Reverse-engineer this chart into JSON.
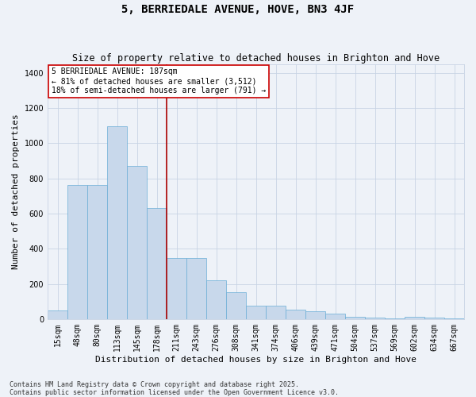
{
  "title": "5, BERRIEDALE AVENUE, HOVE, BN3 4JF",
  "subtitle": "Size of property relative to detached houses in Brighton and Hove",
  "xlabel": "Distribution of detached houses by size in Brighton and Hove",
  "ylabel": "Number of detached properties",
  "categories": [
    "15sqm",
    "48sqm",
    "80sqm",
    "113sqm",
    "145sqm",
    "178sqm",
    "211sqm",
    "243sqm",
    "276sqm",
    "308sqm",
    "341sqm",
    "374sqm",
    "406sqm",
    "439sqm",
    "471sqm",
    "504sqm",
    "537sqm",
    "569sqm",
    "602sqm",
    "634sqm",
    "667sqm"
  ],
  "values": [
    50,
    760,
    760,
    1095,
    870,
    630,
    345,
    345,
    220,
    155,
    75,
    75,
    55,
    45,
    30,
    12,
    8,
    2,
    12,
    8,
    5
  ],
  "bar_color": "#c8d8eb",
  "bar_edge_color": "#6baed6",
  "grid_color": "#c8d4e4",
  "bg_color": "#eef2f8",
  "vline_color": "#aa0000",
  "vline_x_index": 5,
  "annotation_text": "5 BERRIEDALE AVENUE: 187sqm\n← 81% of detached houses are smaller (3,512)\n18% of semi-detached houses are larger (791) →",
  "annotation_box_edgecolor": "#cc0000",
  "ylim": [
    0,
    1450
  ],
  "yticks": [
    0,
    200,
    400,
    600,
    800,
    1000,
    1200,
    1400
  ],
  "footnote": "Contains HM Land Registry data © Crown copyright and database right 2025.\nContains public sector information licensed under the Open Government Licence v3.0.",
  "title_fontsize": 10,
  "subtitle_fontsize": 8.5,
  "axis_label_fontsize": 8,
  "tick_fontsize": 7,
  "annotation_fontsize": 7,
  "footnote_fontsize": 6
}
